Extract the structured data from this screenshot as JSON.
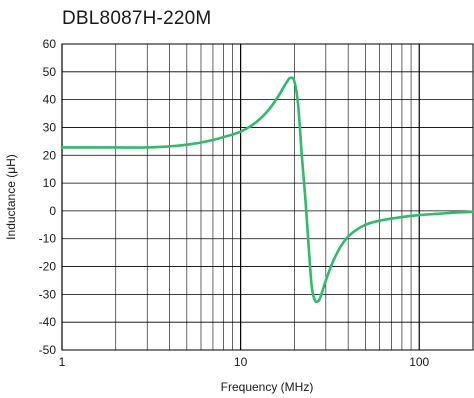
{
  "chart_data": {
    "type": "line",
    "title": "DBL8087H-220M",
    "xlabel": "Frequency (MHz)",
    "ylabel": "Inductance (μH)",
    "x_scale": "log",
    "xlim": [
      1,
      200
    ],
    "ylim": [
      -50,
      60
    ],
    "grid": true,
    "x_ticks": [
      1,
      10,
      100
    ],
    "x_tick_labels": [
      "1",
      "10",
      "100"
    ],
    "y_ticks": [
      -50,
      -40,
      -30,
      -20,
      -10,
      0,
      10,
      20,
      30,
      40,
      50,
      60
    ],
    "y_tick_labels": [
      "-50",
      "-40",
      "-30",
      "-20",
      "-10",
      "0",
      "10",
      "20",
      "30",
      "40",
      "50",
      "60"
    ],
    "line_color": "#2dbd6a",
    "series": [
      {
        "x": [
          1,
          2,
          3,
          4,
          5,
          6,
          7,
          8,
          10,
          12,
          14,
          16,
          18,
          19,
          20,
          21,
          22,
          23,
          24,
          25,
          26,
          27,
          28,
          30,
          33,
          37,
          42,
          50,
          60,
          80,
          100,
          130,
          160,
          200
        ],
        "y": [
          22.8,
          22.8,
          22.8,
          23.2,
          23.8,
          24.6,
          25.5,
          26.5,
          28.5,
          31.5,
          35.5,
          40.5,
          46,
          47.8,
          46.5,
          38,
          20,
          5,
          -12,
          -27,
          -32,
          -32.5,
          -31,
          -25,
          -18,
          -12,
          -8,
          -5,
          -3.5,
          -2.2,
          -1.5,
          -1,
          -0.6,
          -0.3
        ]
      }
    ]
  }
}
